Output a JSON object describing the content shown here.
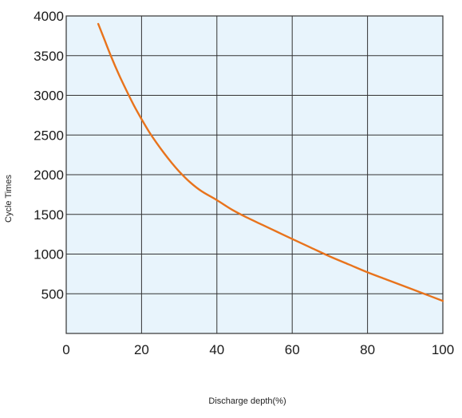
{
  "chart_data": {
    "type": "line",
    "title": "",
    "xlabel": "Discharge depth(%)",
    "ylabel": "Cycle Times",
    "xlim": [
      0,
      100
    ],
    "ylim": [
      0,
      4000
    ],
    "x_ticks": [
      0,
      20,
      40,
      60,
      80,
      100
    ],
    "y_ticks": [
      500,
      1000,
      1500,
      2000,
      2500,
      3000,
      3500,
      4000
    ],
    "grid": true,
    "series": [
      {
        "color": "#e8731c",
        "x": [
          8.5,
          10,
          12,
          14,
          16,
          18,
          20,
          22,
          24,
          26,
          28,
          30,
          33,
          36,
          40,
          44,
          48,
          52,
          56,
          60,
          65,
          70,
          75,
          80,
          85,
          90,
          95,
          100
        ],
        "y": [
          3900,
          3720,
          3480,
          3260,
          3060,
          2870,
          2700,
          2540,
          2400,
          2270,
          2150,
          2040,
          1900,
          1790,
          1680,
          1560,
          1460,
          1370,
          1280,
          1190,
          1080,
          970,
          870,
          770,
          680,
          590,
          500,
          410
        ]
      }
    ],
    "colors": {
      "plot_background": "#e8f4fc",
      "grid": "#333333",
      "line": "#e8731c"
    }
  }
}
